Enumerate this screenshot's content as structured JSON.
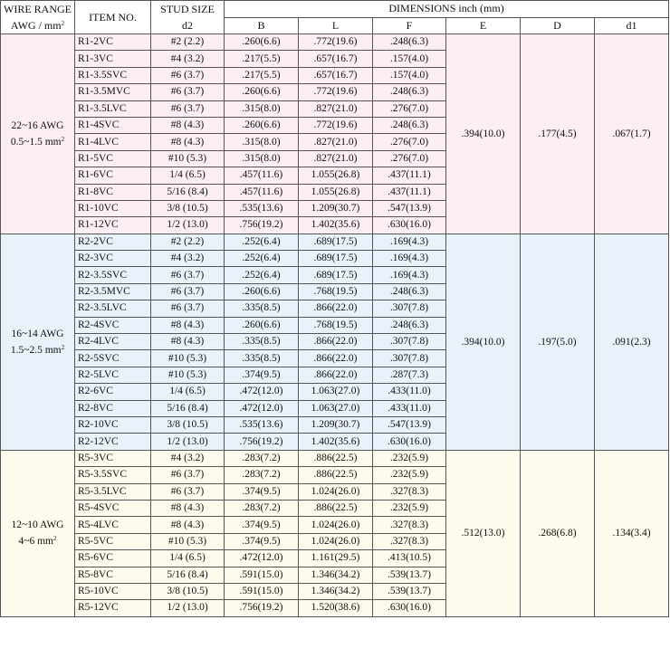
{
  "headers": {
    "wire_range": "WIRE RANGE",
    "wire_range_unit": "AWG / mm",
    "wire_range_unit_sup": "2",
    "item_no": "ITEM NO.",
    "stud_size": "STUD SIZE",
    "stud_size_sub": "d2",
    "dimensions": "DIMENSIONS inch (mm)",
    "cols": [
      "B",
      "L",
      "F",
      "E",
      "D",
      "d1"
    ]
  },
  "groups": [
    {
      "bg": "#fdeef4",
      "wire_awg": "22~16 AWG",
      "wire_mm": "0.5~1.5 mm",
      "wire_mm_sup": "2",
      "E": ".394(10.0)",
      "D": ".177(4.5)",
      "d1": ".067(1.7)",
      "rows": [
        {
          "item": "R1-2VC",
          "stud": "#2 (2.2)",
          "B": ".260(6.6)",
          "L": ".772(19.6)",
          "F": ".248(6.3)"
        },
        {
          "item": "R1-3VC",
          "stud": "#4 (3.2)",
          "B": ".217(5.5)",
          "L": ".657(16.7)",
          "F": ".157(4.0)"
        },
        {
          "item": "R1-3.5SVC",
          "stud": "#6 (3.7)",
          "B": ".217(5.5)",
          "L": ".657(16.7)",
          "F": ".157(4.0)"
        },
        {
          "item": "R1-3.5MVC",
          "stud": "#6 (3.7)",
          "B": ".260(6.6)",
          "L": ".772(19.6)",
          "F": ".248(6.3)"
        },
        {
          "item": "R1-3.5LVC",
          "stud": "#6 (3.7)",
          "B": ".315(8.0)",
          "L": ".827(21.0)",
          "F": ".276(7.0)"
        },
        {
          "item": "R1-4SVC",
          "stud": "#8 (4.3)",
          "B": ".260(6.6)",
          "L": ".772(19.6)",
          "F": ".248(6.3)"
        },
        {
          "item": "R1-4LVC",
          "stud": "#8 (4.3)",
          "B": ".315(8.0)",
          "L": ".827(21.0)",
          "F": ".276(7.0)"
        },
        {
          "item": "R1-5VC",
          "stud": "#10 (5.3)",
          "B": ".315(8.0)",
          "L": ".827(21.0)",
          "F": ".276(7.0)"
        },
        {
          "item": "R1-6VC",
          "stud": "1/4 (6.5)",
          "B": ".457(11.6)",
          "L": "1.055(26.8)",
          "F": ".437(11.1)"
        },
        {
          "item": "R1-8VC",
          "stud": "5/16 (8.4)",
          "B": ".457(11.6)",
          "L": "1.055(26.8)",
          "F": ".437(11.1)"
        },
        {
          "item": "R1-10VC",
          "stud": "3/8 (10.5)",
          "B": ".535(13.6)",
          "L": "1.209(30.7)",
          "F": ".547(13.9)"
        },
        {
          "item": "R1-12VC",
          "stud": "1/2 (13.0)",
          "B": ".756(19.2)",
          "L": "1.402(35.6)",
          "F": ".630(16.0)"
        }
      ]
    },
    {
      "bg": "#e9f2fb",
      "wire_awg": "16~14 AWG",
      "wire_mm": "1.5~2.5 mm",
      "wire_mm_sup": "2",
      "E": ".394(10.0)",
      "D": ".197(5.0)",
      "d1": ".091(2.3)",
      "rows": [
        {
          "item": "R2-2VC",
          "stud": "#2 (2.2)",
          "B": ".252(6.4)",
          "L": ".689(17.5)",
          "F": ".169(4.3)"
        },
        {
          "item": "R2-3VC",
          "stud": "#4 (3.2)",
          "B": ".252(6.4)",
          "L": ".689(17.5)",
          "F": ".169(4.3)"
        },
        {
          "item": "R2-3.5SVC",
          "stud": "#6 (3.7)",
          "B": ".252(6.4)",
          "L": ".689(17.5)",
          "F": ".169(4.3)"
        },
        {
          "item": "R2-3.5MVC",
          "stud": "#6 (3.7)",
          "B": ".260(6.6)",
          "L": ".768(19.5)",
          "F": ".248(6.3)"
        },
        {
          "item": "R2-3.5LVC",
          "stud": "#6 (3.7)",
          "B": ".335(8.5)",
          "L": ".866(22.0)",
          "F": ".307(7.8)"
        },
        {
          "item": "R2-4SVC",
          "stud": "#8 (4.3)",
          "B": ".260(6.6)",
          "L": ".768(19.5)",
          "F": ".248(6.3)"
        },
        {
          "item": "R2-4LVC",
          "stud": "#8 (4.3)",
          "B": ".335(8.5)",
          "L": ".866(22.0)",
          "F": ".307(7.8)"
        },
        {
          "item": "R2-5SVC",
          "stud": "#10 (5.3)",
          "B": ".335(8.5)",
          "L": ".866(22.0)",
          "F": ".307(7.8)"
        },
        {
          "item": "R2-5LVC",
          "stud": "#10 (5.3)",
          "B": ".374(9.5)",
          "L": ".866(22.0)",
          "F": ".287(7.3)"
        },
        {
          "item": "R2-6VC",
          "stud": "1/4 (6.5)",
          "B": ".472(12.0)",
          "L": "1.063(27.0)",
          "F": ".433(11.0)"
        },
        {
          "item": "R2-8VC",
          "stud": "5/16 (8.4)",
          "B": ".472(12.0)",
          "L": "1.063(27.0)",
          "F": ".433(11.0)"
        },
        {
          "item": "R2-10VC",
          "stud": "3/8 (10.5)",
          "B": ".535(13.6)",
          "L": "1.209(30.7)",
          "F": ".547(13.9)"
        },
        {
          "item": "R2-12VC",
          "stud": "1/2 (13.0)",
          "B": ".756(19.2)",
          "L": "1.402(35.6)",
          "F": ".630(16.0)"
        }
      ]
    },
    {
      "bg": "#fdfbec",
      "wire_awg": "12~10 AWG",
      "wire_mm": "4~6 mm",
      "wire_mm_sup": "2",
      "E": ".512(13.0)",
      "D": ".268(6.8)",
      "d1": ".134(3.4)",
      "rows": [
        {
          "item": "R5-3VC",
          "stud": "#4 (3.2)",
          "B": ".283(7.2)",
          "L": ".886(22.5)",
          "F": ".232(5.9)"
        },
        {
          "item": "R5-3.5SVC",
          "stud": "#6 (3.7)",
          "B": ".283(7.2)",
          "L": ".886(22.5)",
          "F": ".232(5.9)"
        },
        {
          "item": "R5-3.5LVC",
          "stud": "#6 (3.7)",
          "B": ".374(9.5)",
          "L": "1.024(26.0)",
          "F": ".327(8.3)"
        },
        {
          "item": "R5-4SVC",
          "stud": "#8 (4.3)",
          "B": ".283(7.2)",
          "L": ".886(22.5)",
          "F": ".232(5.9)"
        },
        {
          "item": "R5-4LVC",
          "stud": "#8 (4.3)",
          "B": ".374(9.5)",
          "L": "1.024(26.0)",
          "F": ".327(8.3)"
        },
        {
          "item": "R5-5VC",
          "stud": "#10 (5.3)",
          "B": ".374(9.5)",
          "L": "1.024(26.0)",
          "F": ".327(8.3)"
        },
        {
          "item": "R5-6VC",
          "stud": "1/4 (6.5)",
          "B": ".472(12.0)",
          "L": "1.161(29.5)",
          "F": ".413(10.5)"
        },
        {
          "item": "R5-8VC",
          "stud": "5/16 (8.4)",
          "B": ".591(15.0)",
          "L": "1.346(34.2)",
          "F": ".539(13.7)"
        },
        {
          "item": "R5-10VC",
          "stud": "3/8 (10.5)",
          "B": ".591(15.0)",
          "L": "1.346(34.2)",
          "F": ".539(13.7)"
        },
        {
          "item": "R5-12VC",
          "stud": "1/2 (13.0)",
          "B": ".756(19.2)",
          "L": "1.520(38.6)",
          "F": ".630(16.0)"
        }
      ]
    }
  ]
}
